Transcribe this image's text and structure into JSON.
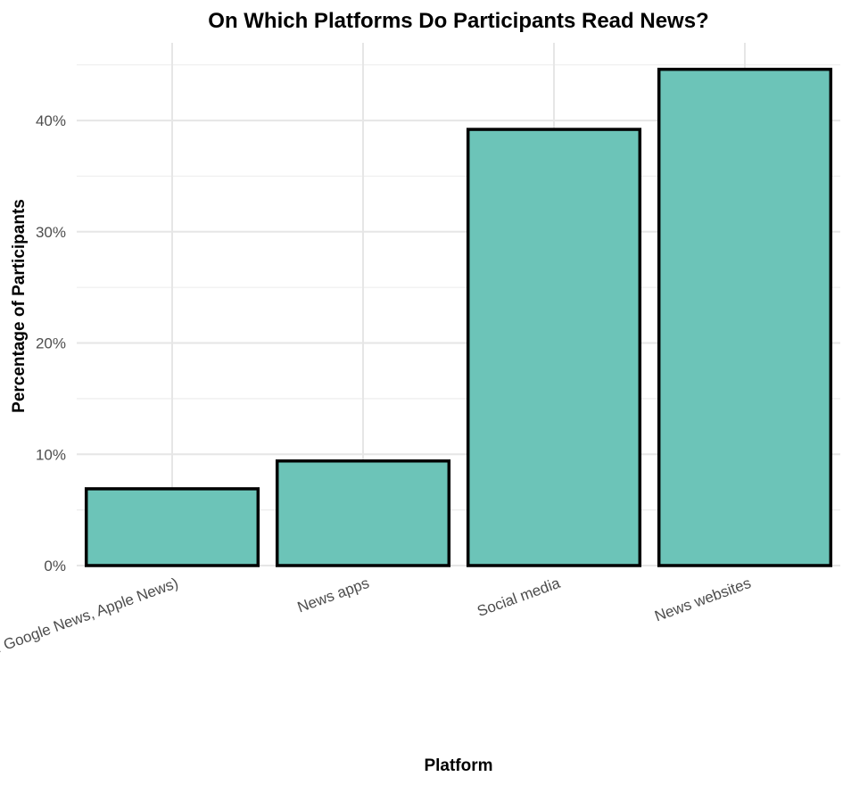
{
  "chart_data": {
    "type": "bar",
    "title": "On Which Platforms Do Participants Read News?",
    "xlabel": "Platform",
    "ylabel": "Percentage of Participants",
    "categories": [
      "News aggregators (e.g. Google News, Apple News)",
      "News apps",
      "Social media",
      "News websites"
    ],
    "values": [
      6.9,
      9.4,
      39.2,
      44.6
    ],
    "ylim": [
      0,
      46.5
    ],
    "yticks": [
      0,
      10,
      20,
      30,
      40
    ],
    "ytick_labels": [
      "0%",
      "10%",
      "20%",
      "30%",
      "40%"
    ],
    "bar_color": "#6cc4b8",
    "bar_outline": "#000000",
    "grid": true,
    "legend": "none"
  }
}
